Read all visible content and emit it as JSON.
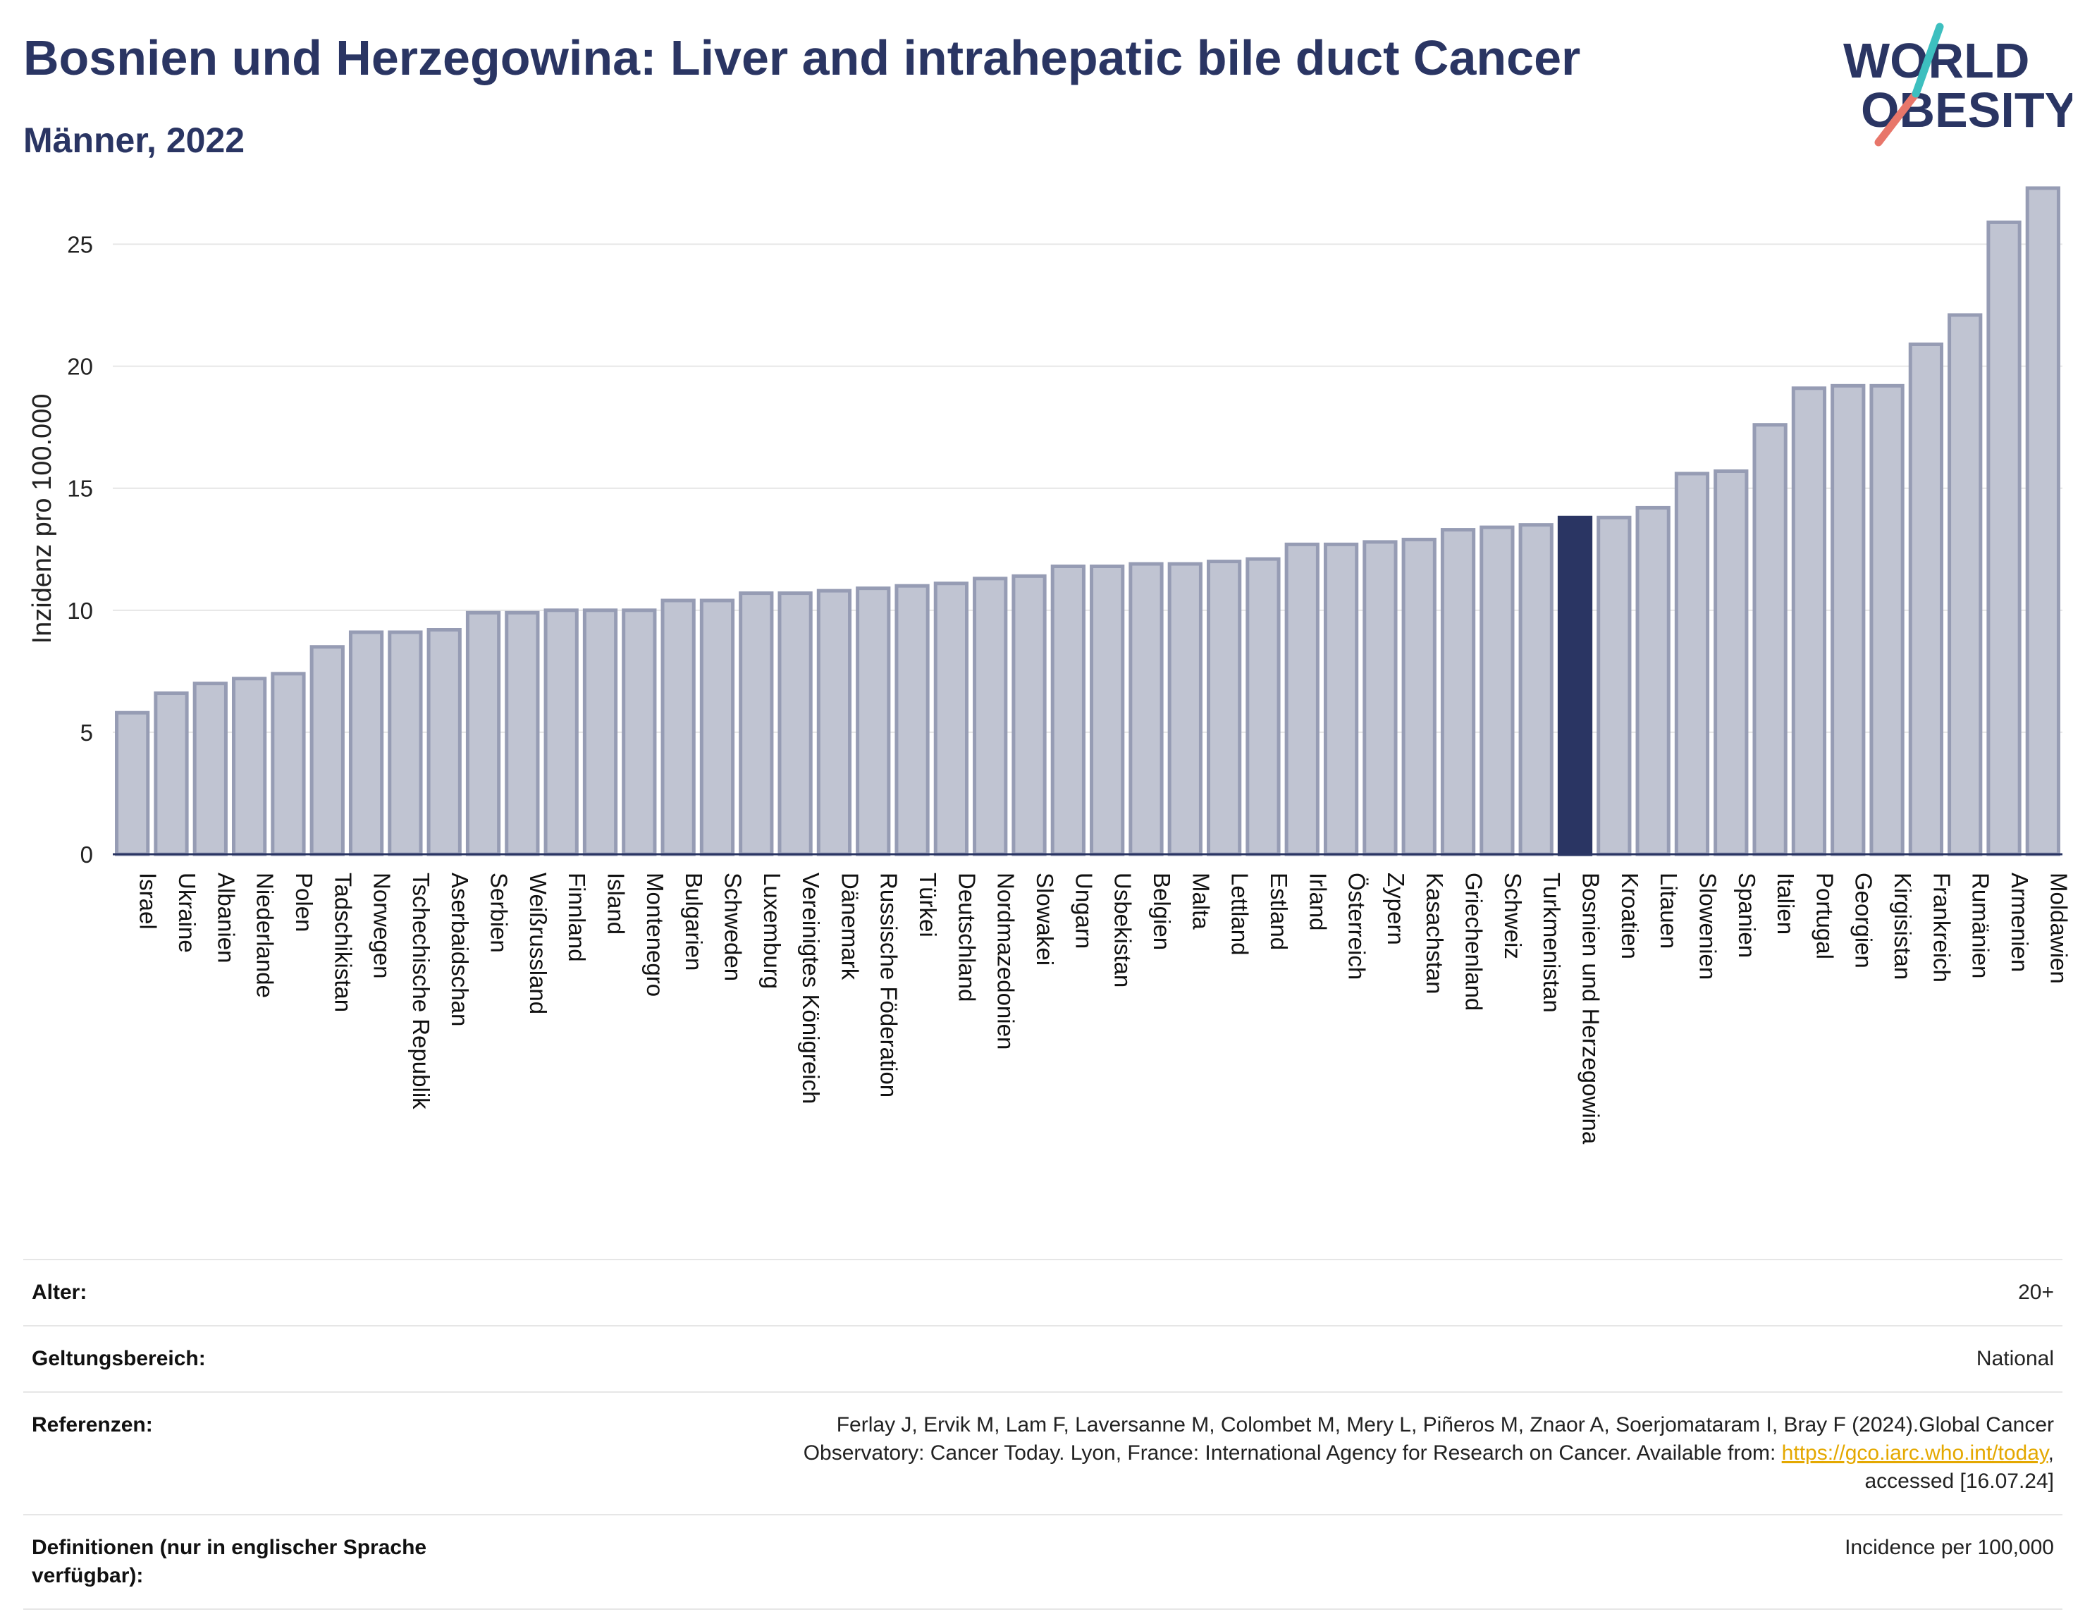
{
  "header": {
    "title": "Bosnien und Herzegowina: Liver and intrahepatic bile duct Cancer",
    "subtitle": "Männer, 2022"
  },
  "logo": {
    "line1": "WORLD",
    "line2": "OBESITY"
  },
  "colors": {
    "bar": "#c0c4d2",
    "bar_edge": "#969cb4",
    "highlight": "#2a3563",
    "title": "#2a3563",
    "grid": "#e6e6e6",
    "link": "#e4a800"
  },
  "chart_data": {
    "type": "bar",
    "ylabel": "Inzidenz pro 100.000",
    "ylim": [
      0,
      27.5
    ],
    "yticks": [
      0,
      5,
      10,
      15,
      20,
      25
    ],
    "grid": true,
    "highlight": "Bosnien und Herzegowina",
    "categories": [
      "Israel",
      "Ukraine",
      "Albanien",
      "Niederlande",
      "Polen",
      "Tadschikistan",
      "Norwegen",
      "Tschechische Republik",
      "Aserbaidschan",
      "Serbien",
      "Weißrussland",
      "Finnland",
      "Island",
      "Montenegro",
      "Bulgarien",
      "Schweden",
      "Luxemburg",
      "Vereinigtes Königreich",
      "Dänemark",
      "Russische Föderation",
      "Türkei",
      "Deutschland",
      "Nordmazedonien",
      "Slowakei",
      "Ungarn",
      "Usbekistan",
      "Belgien",
      "Malta",
      "Lettland",
      "Estland",
      "Irland",
      "Österreich",
      "Zypern",
      "Kasachstan",
      "Griechenland",
      "Schweiz",
      "Turkmenistan",
      "Bosnien und Herzegowina",
      "Kroatien",
      "Litauen",
      "Slowenien",
      "Spanien",
      "Italien",
      "Portugal",
      "Georgien",
      "Kirgisistan",
      "Frankreich",
      "Rumänien",
      "Armenien",
      "Moldawien"
    ],
    "values": [
      5.8,
      6.6,
      7.0,
      7.2,
      7.4,
      8.5,
      9.1,
      9.1,
      9.2,
      9.9,
      9.9,
      10.0,
      10.0,
      10.0,
      10.4,
      10.4,
      10.7,
      10.7,
      10.8,
      10.9,
      11.0,
      11.1,
      11.3,
      11.4,
      11.8,
      11.8,
      11.9,
      11.9,
      12.0,
      12.1,
      12.7,
      12.7,
      12.8,
      12.9,
      13.3,
      13.4,
      13.5,
      13.8,
      13.8,
      14.2,
      15.6,
      15.7,
      17.6,
      19.1,
      19.2,
      19.2,
      20.9,
      22.1,
      25.9,
      27.3
    ]
  },
  "meta": {
    "alter_key": "Alter:",
    "alter_val": "20+",
    "scope_key": "Geltungsbereich:",
    "scope_val": "National",
    "ref_key": "Referenzen:",
    "ref_line1": "Ferlay J, Ervik M, Lam F, Laversanne M, Colombet M, Mery L, Piñeros M, Znaor A, Soerjomataram I, Bray F (2024).Global Cancer",
    "ref_line2_pre": "Observatory: Cancer Today. Lyon, France: International Agency for Research on Cancer. Available from: ",
    "ref_link": "https://gco.iarc.who.int/today",
    "ref_line2_post": ",",
    "ref_line3": "accessed [16.07.24]",
    "def_key": "Definitionen (nur in englischer Sprache verfügbar):",
    "def_val": "Incidence per 100,000"
  }
}
